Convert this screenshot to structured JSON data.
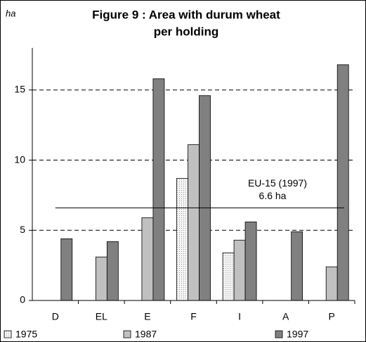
{
  "chart_data": {
    "type": "bar",
    "title": [
      "Figure 9 : Area with durum wheat",
      "per holding"
    ],
    "y_label": "ha",
    "categories": [
      "D",
      "EL",
      "E",
      "F",
      "I",
      "A",
      "P"
    ],
    "series": [
      {
        "name": "1975",
        "color": "#f2f2f2",
        "values": [
          null,
          null,
          null,
          8.7,
          3.4,
          null,
          null
        ]
      },
      {
        "name": "1987",
        "color": "#c0c0c0",
        "values": [
          null,
          3.1,
          5.9,
          11.1,
          4.3,
          null,
          2.4
        ]
      },
      {
        "name": "1997",
        "color": "#808080",
        "values": [
          4.4,
          4.2,
          15.8,
          14.6,
          5.6,
          4.9,
          16.8
        ]
      }
    ],
    "reference": {
      "value": 6.6,
      "label": "EU-15 (1997)",
      "value_label": "6.6 ha"
    },
    "ylim": [
      0,
      18
    ],
    "yticks": [
      0,
      5,
      10,
      15
    ],
    "grid": true
  }
}
